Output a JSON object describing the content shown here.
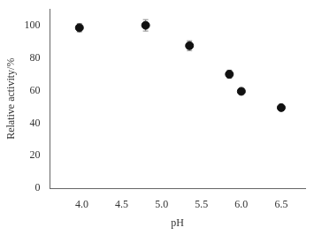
{
  "chart_data": {
    "type": "scatter",
    "x": [
      3.97,
      4.8,
      5.35,
      5.85,
      6.0,
      6.5
    ],
    "values": [
      98.5,
      100.0,
      87.5,
      70.0,
      59.5,
      49.5
    ],
    "yerr": [
      2.5,
      3.5,
      3.0,
      2.5,
      1.5,
      1.5
    ],
    "xlabel": "pH",
    "ylabel": "Relative activity/%",
    "xlim": [
      3.6,
      6.8
    ],
    "ylim": [
      0,
      110
    ],
    "xticks": [
      {
        "value": 4.0,
        "label": "4.0"
      },
      {
        "value": 4.5,
        "label": "4.5"
      },
      {
        "value": 5.0,
        "label": "5.0"
      },
      {
        "value": 5.5,
        "label": "5.5"
      },
      {
        "value": 6.0,
        "label": "6.0"
      },
      {
        "value": 6.5,
        "label": "6.5"
      }
    ],
    "yticks": [
      0,
      20,
      40,
      60,
      80,
      100
    ],
    "color": "#111111",
    "marker": "circle",
    "grid": false
  }
}
